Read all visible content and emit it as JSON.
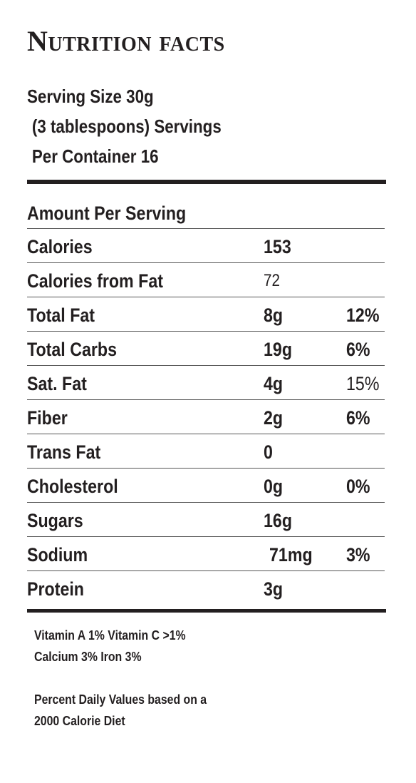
{
  "title": "Nutrition facts",
  "serving": {
    "line1": "Serving Size 30g",
    "line2": "(3 tablespoons) Servings",
    "line3": "Per Container 16"
  },
  "amount_header": "Amount Per Serving",
  "rows": [
    {
      "name": "Calories",
      "amount": "153",
      "percent": ""
    },
    {
      "name": "Calories from Fat",
      "amount": "72",
      "percent": ""
    },
    {
      "name": "Total Fat",
      "amount": "8g",
      "percent": "12%"
    },
    {
      "name": "Total Carbs",
      "amount": "19g",
      "percent": "6%"
    },
    {
      "name": "Sat. Fat",
      "amount": "4g",
      "percent": "15%"
    },
    {
      "name": "Fiber",
      "amount": "2g",
      "percent": "6%"
    },
    {
      "name": "Trans Fat",
      "amount": "0",
      "percent": ""
    },
    {
      "name": "Cholesterol",
      "amount": "0g",
      "percent": "0%"
    },
    {
      "name": "Sugars",
      "amount": "16g",
      "percent": ""
    },
    {
      "name": "Sodium",
      "amount": "71mg",
      "percent": "3%"
    },
    {
      "name": "Protein",
      "amount": "3g",
      "percent": ""
    }
  ],
  "vitamins": {
    "line1": "Vitamin A 1% Vitamin C >1%",
    "line2": "Calcium 3% Iron 3%"
  },
  "footnote": {
    "line1": "Percent Daily Values based on a",
    "line2": "2000 Calorie Diet"
  }
}
